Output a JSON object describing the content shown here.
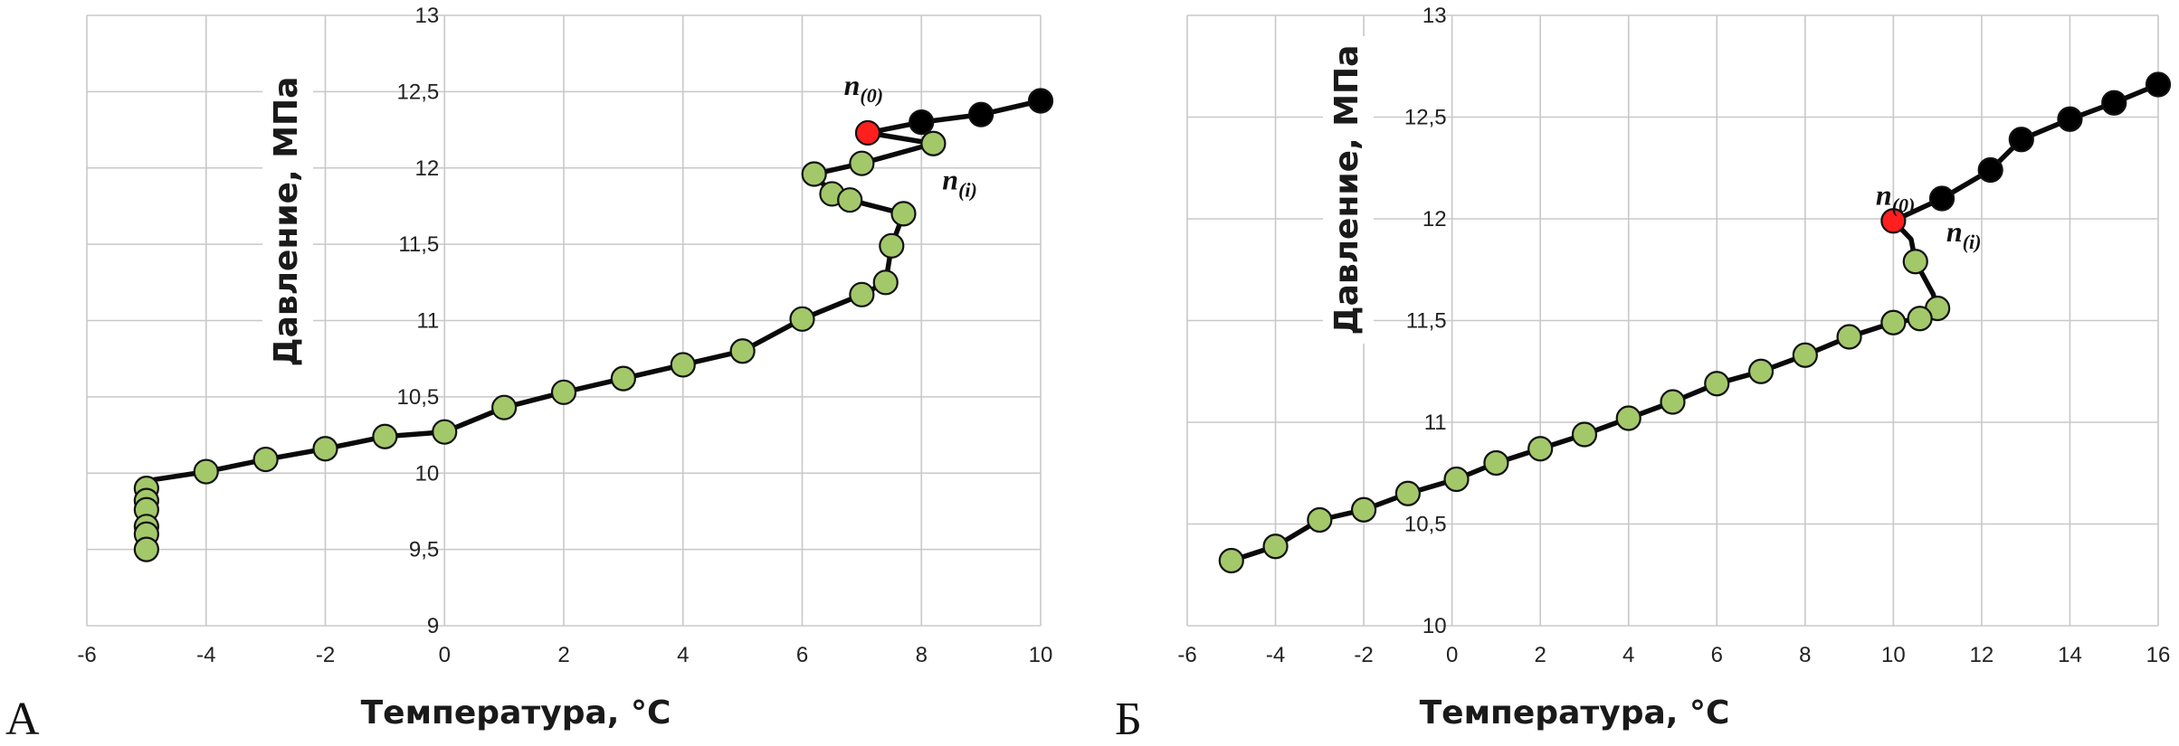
{
  "figure": {
    "panels": [
      {
        "id": "a",
        "panel_label": "А",
        "chart_data": {
          "type": "scatter",
          "xlabel": "Температура, °C",
          "ylabel": "Давление, МПа",
          "xlim": [
            -6,
            10
          ],
          "ylim": [
            9,
            13
          ],
          "xticks": [
            -6,
            -4,
            -2,
            0,
            2,
            4,
            6,
            8,
            10
          ],
          "xtick_labels": [
            "-6",
            "-4",
            "-2",
            "0",
            "2",
            "4",
            "6",
            "8",
            "10"
          ],
          "yticks": [
            9,
            9.5,
            10,
            10.5,
            11,
            11.5,
            12,
            12.5,
            13
          ],
          "ytick_labels": [
            "9",
            "9,5",
            "10",
            "10,5",
            "11",
            "11,5",
            "12",
            "12,5",
            "13"
          ],
          "grid": true,
          "curve": [
            [
              10,
              12.44
            ],
            [
              9,
              12.35
            ],
            [
              8,
              12.3
            ],
            [
              7.1,
              12.23
            ],
            [
              8.2,
              12.16
            ],
            [
              7,
              12.03
            ],
            [
              6.2,
              11.96
            ],
            [
              6.5,
              11.83
            ],
            [
              6.8,
              11.79
            ],
            [
              7.7,
              11.7
            ],
            [
              7.5,
              11.49
            ],
            [
              7.4,
              11.25
            ],
            [
              7,
              11.17
            ],
            [
              6,
              11.01
            ],
            [
              5,
              10.8
            ],
            [
              4,
              10.71
            ],
            [
              3,
              10.62
            ],
            [
              2,
              10.53
            ],
            [
              1,
              10.43
            ],
            [
              0,
              10.27
            ],
            [
              -1,
              10.24
            ],
            [
              -2,
              10.16
            ],
            [
              -3,
              10.09
            ],
            [
              -4,
              10.01
            ],
            [
              -5,
              9.95
            ],
            [
              -5,
              9.9
            ],
            [
              -5,
              9.82
            ],
            [
              -5,
              9.76
            ],
            [
              -5,
              9.65
            ],
            [
              -5,
              9.6
            ],
            [
              -5,
              9.5
            ]
          ],
          "series": [
            {
              "points": [
                [
                  10,
                  12.44
                ],
                [
                  9,
                  12.35
                ],
                [
                  8,
                  12.3
                ]
              ],
              "color": "#000000"
            },
            {
              "points": [
                [
                  7.1,
                  12.23
                ]
              ],
              "color": "#ff1f1f"
            },
            {
              "points": [
                [
                  8.2,
                  12.16
                ],
                [
                  7,
                  12.03
                ],
                [
                  6.2,
                  11.96
                ],
                [
                  6.5,
                  11.83
                ],
                [
                  6.8,
                  11.79
                ],
                [
                  7.7,
                  11.7
                ],
                [
                  7.5,
                  11.49
                ],
                [
                  7.4,
                  11.25
                ],
                [
                  7,
                  11.17
                ],
                [
                  6,
                  11.01
                ],
                [
                  5,
                  10.8
                ],
                [
                  4,
                  10.71
                ],
                [
                  3,
                  10.62
                ],
                [
                  2,
                  10.53
                ],
                [
                  1,
                  10.43
                ],
                [
                  0,
                  10.27
                ],
                [
                  -1,
                  10.24
                ],
                [
                  -2,
                  10.16
                ],
                [
                  -3,
                  10.09
                ],
                [
                  -4,
                  10.01
                ],
                [
                  -5,
                  9.9
                ],
                [
                  -5,
                  9.82
                ],
                [
                  -5,
                  9.76
                ],
                [
                  -5,
                  9.65
                ],
                [
                  -5,
                  9.6
                ],
                [
                  -5,
                  9.5
                ]
              ],
              "color": "#a3c86a"
            }
          ],
          "annotations": [
            {
              "text": "n",
              "sub": "(0)",
              "x": 6.7,
              "y": 12.48
            },
            {
              "text": "n",
              "sub": "(i)",
              "x": 8.35,
              "y": 11.86
            }
          ]
        }
      },
      {
        "id": "b",
        "panel_label": "Б",
        "chart_data": {
          "type": "scatter",
          "xlabel": "Температура, °C",
          "ylabel": "Давление, МПа",
          "xlim": [
            -6,
            16
          ],
          "ylim": [
            10,
            13
          ],
          "xticks": [
            -6,
            -4,
            -2,
            0,
            2,
            4,
            6,
            8,
            10,
            12,
            14,
            16
          ],
          "xtick_labels": [
            "-6",
            "-4",
            "-2",
            "0",
            "2",
            "4",
            "6",
            "8",
            "10",
            "12",
            "14",
            "16"
          ],
          "yticks": [
            10,
            10.5,
            11,
            11.5,
            12,
            12.5,
            13
          ],
          "ytick_labels": [
            "10",
            "10,5",
            "11",
            "11,5",
            "12",
            "12,5",
            "13"
          ],
          "grid": true,
          "curve": [
            [
              16,
              12.66
            ],
            [
              15,
              12.57
            ],
            [
              14,
              12.49
            ],
            [
              12.9,
              12.39
            ],
            [
              12.2,
              12.24
            ],
            [
              11.1,
              12.1
            ],
            [
              10,
              11.99
            ],
            [
              10.4,
              11.9
            ],
            [
              10.5,
              11.79
            ],
            [
              10.9,
              11.63
            ],
            [
              11,
              11.56
            ],
            [
              10.6,
              11.51
            ],
            [
              10,
              11.49
            ],
            [
              9,
              11.42
            ],
            [
              8,
              11.33
            ],
            [
              7,
              11.25
            ],
            [
              6,
              11.19
            ],
            [
              5,
              11.1
            ],
            [
              4,
              11.02
            ],
            [
              3,
              10.94
            ],
            [
              2,
              10.87
            ],
            [
              1,
              10.8
            ],
            [
              0.1,
              10.72
            ],
            [
              -1,
              10.65
            ],
            [
              -2,
              10.57
            ],
            [
              -3,
              10.52
            ],
            [
              -4,
              10.39
            ],
            [
              -5,
              10.32
            ]
          ],
          "series": [
            {
              "points": [
                [
                  16,
                  12.66
                ],
                [
                  15,
                  12.57
                ],
                [
                  14,
                  12.49
                ],
                [
                  12.9,
                  12.39
                ],
                [
                  12.2,
                  12.24
                ],
                [
                  11.1,
                  12.1
                ]
              ],
              "color": "#000000"
            },
            {
              "points": [
                [
                  10,
                  11.99
                ]
              ],
              "color": "#ff1f1f"
            },
            {
              "points": [
                [
                  10.5,
                  11.79
                ],
                [
                  11,
                  11.56
                ],
                [
                  10.6,
                  11.51
                ],
                [
                  10,
                  11.49
                ],
                [
                  9,
                  11.42
                ],
                [
                  8,
                  11.33
                ],
                [
                  7,
                  11.25
                ],
                [
                  6,
                  11.19
                ],
                [
                  5,
                  11.1
                ],
                [
                  4,
                  11.02
                ],
                [
                  3,
                  10.94
                ],
                [
                  2,
                  10.87
                ],
                [
                  1,
                  10.8
                ],
                [
                  0.1,
                  10.72
                ],
                [
                  -1,
                  10.65
                ],
                [
                  -2,
                  10.57
                ],
                [
                  -3,
                  10.52
                ],
                [
                  -4,
                  10.39
                ],
                [
                  -5,
                  10.32
                ]
              ],
              "color": "#a3c86a"
            }
          ],
          "annotations": [
            {
              "text": "n",
              "sub": "(0)",
              "x": 9.6,
              "y": 12.07
            },
            {
              "text": "n",
              "sub": "(i)",
              "x": 11.2,
              "y": 11.89
            }
          ]
        }
      }
    ]
  }
}
